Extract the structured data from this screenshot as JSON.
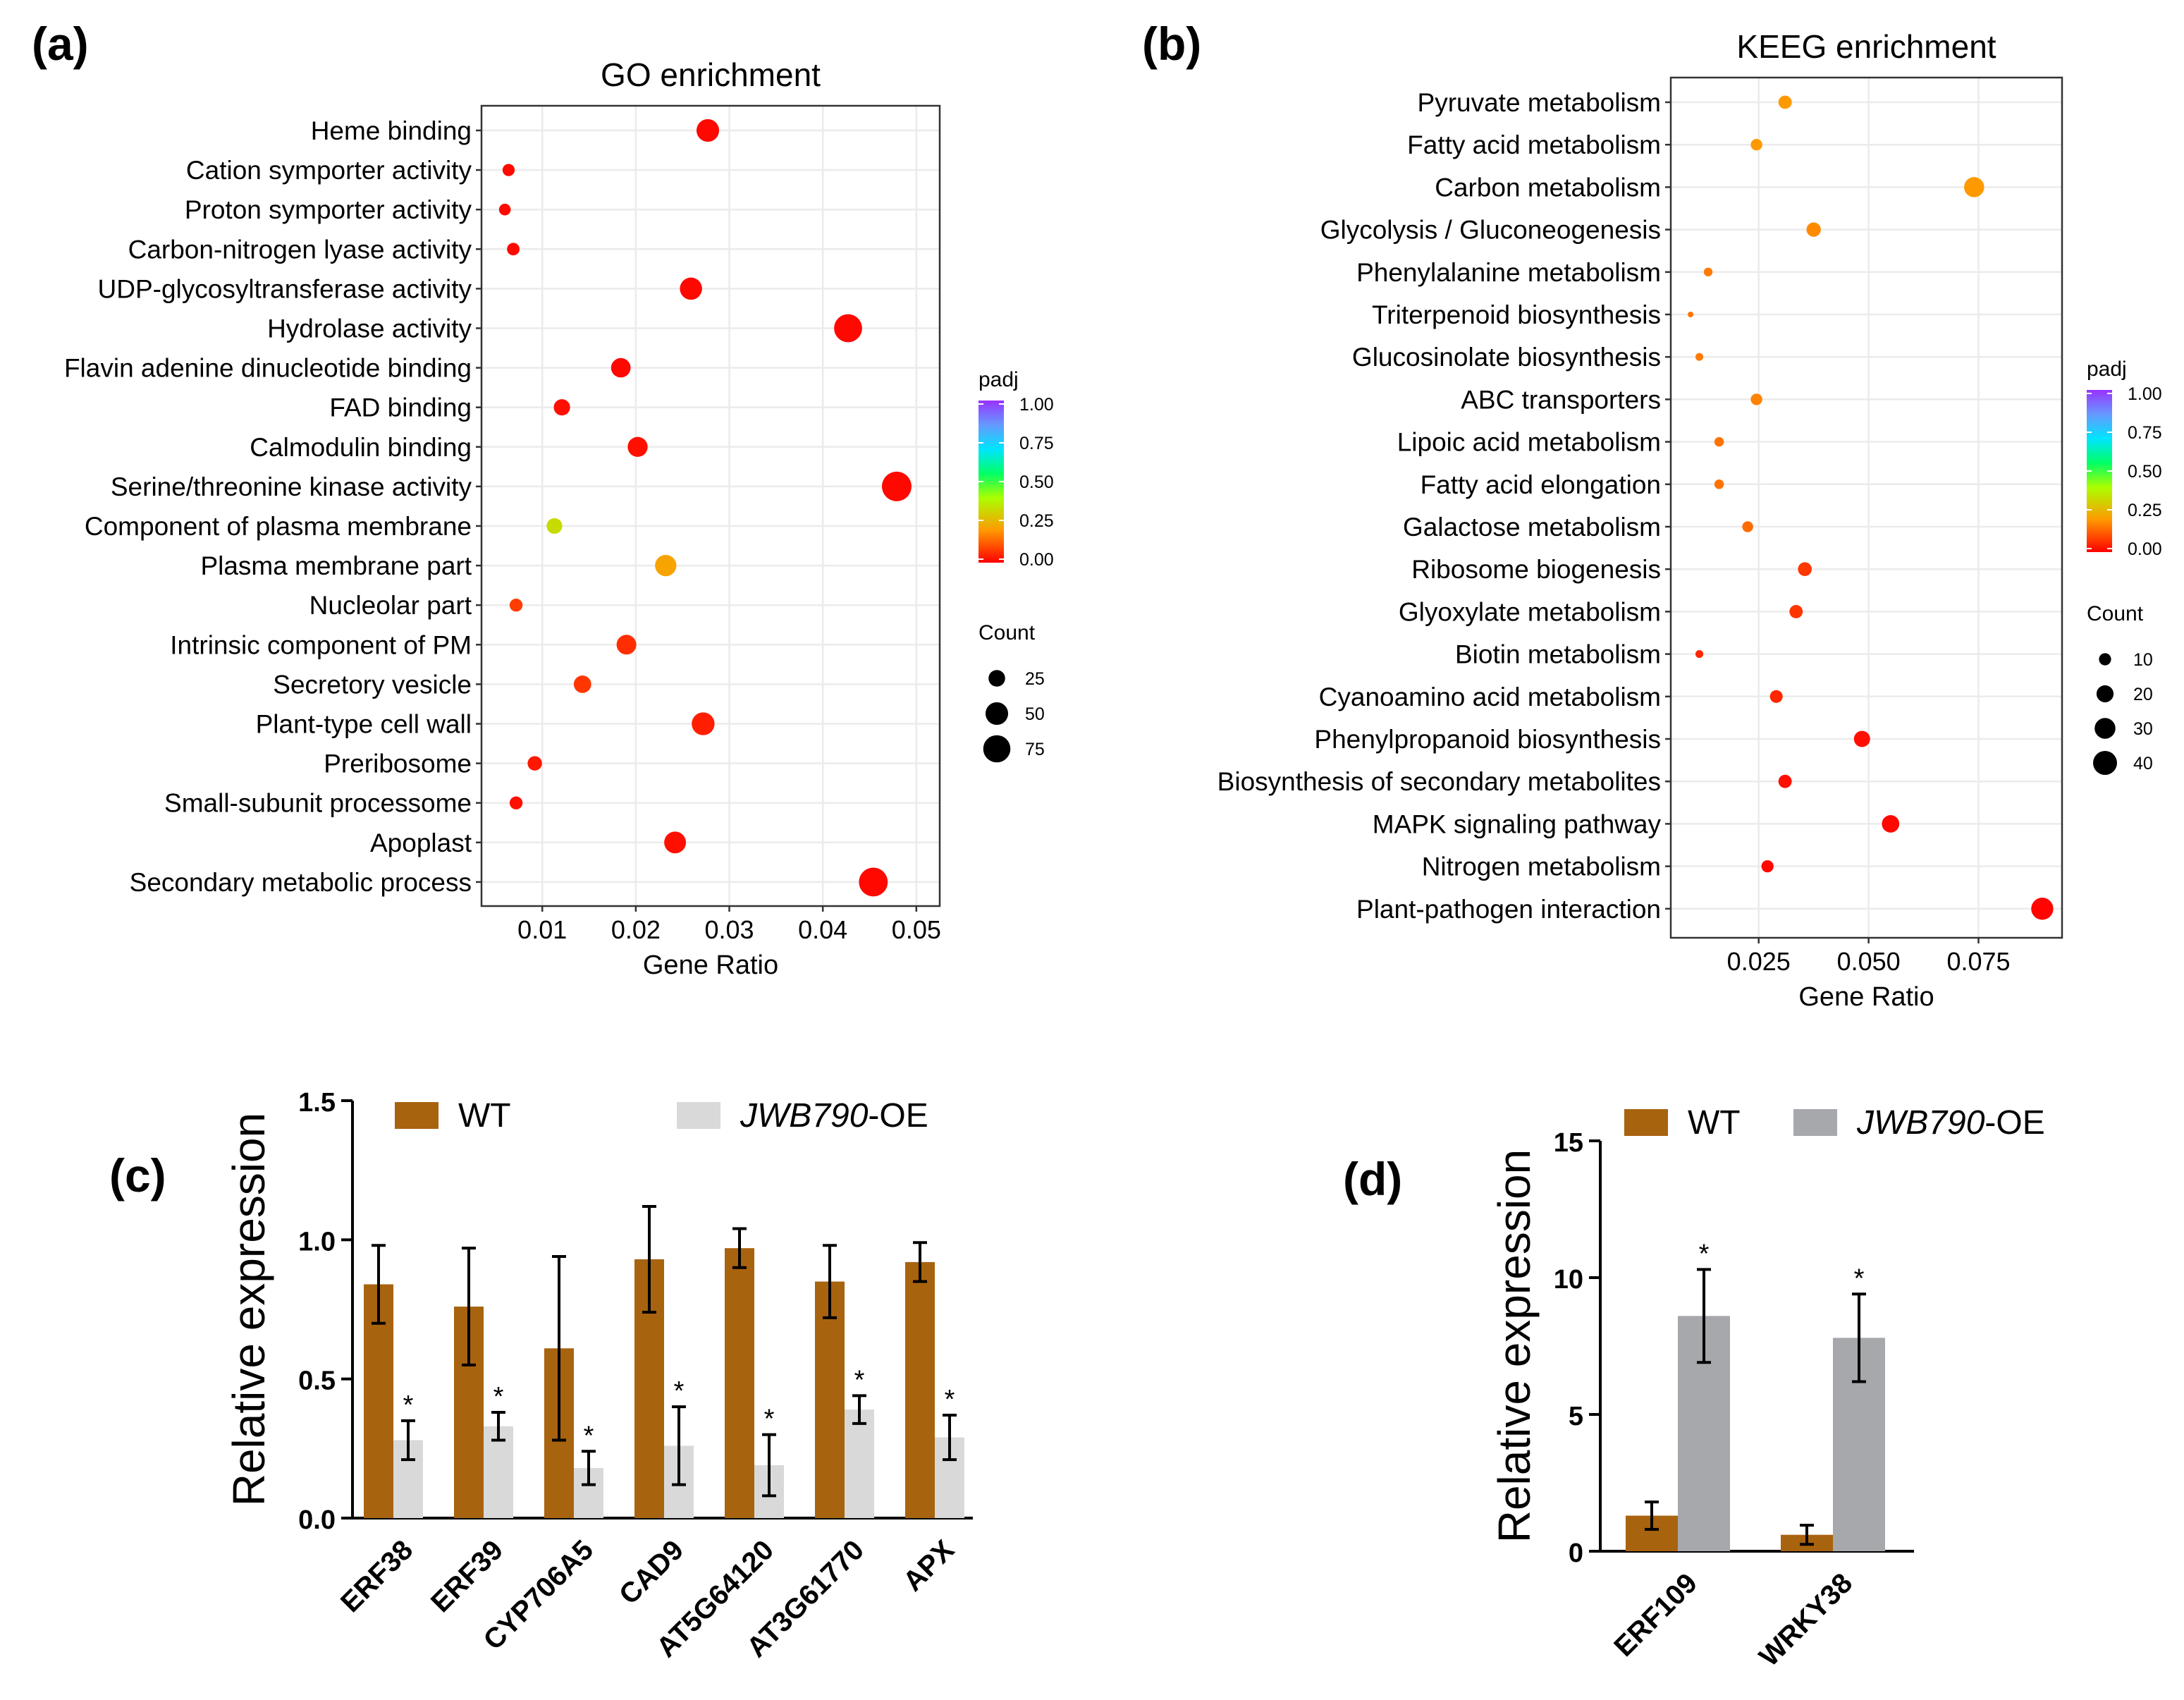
{
  "chart_data": [
    {
      "panel": "(a)",
      "type": "scatter",
      "title": "GO enrichment",
      "xlabel": "Gene Ratio",
      "ylabel": "",
      "xlim": [
        0.0035,
        0.0525
      ],
      "xticks": [
        0.01,
        0.02,
        0.03,
        0.04,
        0.05
      ],
      "xtick_labels": [
        "0.01",
        "0.02",
        "0.03",
        "0.04",
        "0.05"
      ],
      "grid": true,
      "legend": {
        "color_title": "padj",
        "color_ticks": [
          "1.00",
          "0.75",
          "0.50",
          "0.25",
          "0.00"
        ],
        "size_title": "Count",
        "size_values": [
          25,
          50,
          75
        ],
        "size_labels": [
          "25",
          "50",
          "75"
        ]
      },
      "terms": [
        {
          "name": "Heme binding",
          "ratio": 0.0277,
          "padj": 0.01,
          "count": 50
        },
        {
          "name": "Cation symporter activity",
          "ratio": 0.0064,
          "padj": 0.01,
          "count": 12
        },
        {
          "name": "Proton symporter activity",
          "ratio": 0.006,
          "padj": 0.01,
          "count": 11
        },
        {
          "name": "Carbon-nitrogen lyase activity",
          "ratio": 0.0069,
          "padj": 0.01,
          "count": 13
        },
        {
          "name": "UDP-glycosyltransferase activity",
          "ratio": 0.0259,
          "padj": 0.01,
          "count": 48
        },
        {
          "name": "Hydrolase activity",
          "ratio": 0.0427,
          "padj": 0.01,
          "count": 80
        },
        {
          "name": "Flavin adenine dinucleotide binding",
          "ratio": 0.0184,
          "padj": 0.01,
          "count": 36
        },
        {
          "name": "FAD binding",
          "ratio": 0.0121,
          "padj": 0.02,
          "count": 24
        },
        {
          "name": "Calmodulin binding",
          "ratio": 0.0202,
          "padj": 0.02,
          "count": 38
        },
        {
          "name": "Serine/threonine kinase activity",
          "ratio": 0.0479,
          "padj": 0.01,
          "count": 90
        },
        {
          "name": "Component of plasma membrane",
          "ratio": 0.0113,
          "padj": 0.33,
          "count": 22
        },
        {
          "name": "Plasma membrane part",
          "ratio": 0.0232,
          "padj": 0.22,
          "count": 44
        },
        {
          "name": "Nucleolar part",
          "ratio": 0.0072,
          "padj": 0.08,
          "count": 14
        },
        {
          "name": "Intrinsic component of PM",
          "ratio": 0.019,
          "padj": 0.06,
          "count": 37
        },
        {
          "name": "Secretory vesicle",
          "ratio": 0.0143,
          "padj": 0.07,
          "count": 28
        },
        {
          "name": "Plant-type cell wall",
          "ratio": 0.0272,
          "padj": 0.04,
          "count": 51
        },
        {
          "name": "Preribosome",
          "ratio": 0.0092,
          "padj": 0.03,
          "count": 18
        },
        {
          "name": "Small-subunit processome",
          "ratio": 0.0072,
          "padj": 0.02,
          "count": 14
        },
        {
          "name": "Apoplast",
          "ratio": 0.0242,
          "padj": 0.02,
          "count": 46
        },
        {
          "name": "Secondary metabolic process",
          "ratio": 0.0454,
          "padj": 0.01,
          "count": 85
        }
      ]
    },
    {
      "panel": "(b)",
      "type": "scatter",
      "title": "KEEG enrichment",
      "xlabel": "Gene Ratio",
      "ylabel": "",
      "xlim": [
        0.005,
        0.094
      ],
      "xticks": [
        0.025,
        0.05,
        0.075
      ],
      "xtick_labels": [
        "0.025",
        "0.050",
        "0.075"
      ],
      "grid": true,
      "legend": {
        "color_title": "padj",
        "color_ticks": [
          "1.00",
          "0.75",
          "0.50",
          "0.25",
          "0.00"
        ],
        "size_title": "Count",
        "size_values": [
          10,
          20,
          30,
          40
        ],
        "size_labels": [
          "10",
          "20",
          "30",
          "40"
        ]
      },
      "terms": [
        {
          "name": "Pyruvate metabolism",
          "ratio": 0.031,
          "padj": 0.2,
          "count": 12
        },
        {
          "name": "Fatty acid metabolism",
          "ratio": 0.0245,
          "padj": 0.2,
          "count": 9
        },
        {
          "name": "Carbon metabolism",
          "ratio": 0.074,
          "padj": 0.2,
          "count": 28
        },
        {
          "name": "Glycolysis / Gluconeogenesis",
          "ratio": 0.0375,
          "padj": 0.18,
          "count": 14
        },
        {
          "name": "Phenylalanine metabolism",
          "ratio": 0.0135,
          "padj": 0.16,
          "count": 5
        },
        {
          "name": "Triterpenoid biosynthesis",
          "ratio": 0.0095,
          "padj": 0.15,
          "count": 2
        },
        {
          "name": "Glucosinolate biosynthesis",
          "ratio": 0.0115,
          "padj": 0.16,
          "count": 4
        },
        {
          "name": "ABC transporters",
          "ratio": 0.0245,
          "padj": 0.17,
          "count": 9
        },
        {
          "name": "Lipoic acid metabolism",
          "ratio": 0.016,
          "padj": 0.15,
          "count": 6
        },
        {
          "name": "Fatty acid elongation",
          "ratio": 0.016,
          "padj": 0.15,
          "count": 6
        },
        {
          "name": "Galactose metabolism",
          "ratio": 0.0225,
          "padj": 0.14,
          "count": 8
        },
        {
          "name": "Ribosome biogenesis",
          "ratio": 0.0355,
          "padj": 0.07,
          "count": 13
        },
        {
          "name": "Glyoxylate metabolism",
          "ratio": 0.0335,
          "padj": 0.07,
          "count": 12
        },
        {
          "name": "Biotin metabolism",
          "ratio": 0.0115,
          "padj": 0.05,
          "count": 4
        },
        {
          "name": "Cyanoamino acid metabolism",
          "ratio": 0.029,
          "padj": 0.05,
          "count": 11
        },
        {
          "name": "Phenylpropanoid biosynthesis",
          "ratio": 0.0485,
          "padj": 0.02,
          "count": 18
        },
        {
          "name": "Biosynthesis of secondary metabolites",
          "ratio": 0.031,
          "padj": 0.02,
          "count": 12
        },
        {
          "name": "MAPK signaling pathway",
          "ratio": 0.055,
          "padj": 0.01,
          "count": 21
        },
        {
          "name": "Nitrogen metabolism",
          "ratio": 0.027,
          "padj": 0.01,
          "count": 10
        },
        {
          "name": "Plant-pathogen interaction",
          "ratio": 0.0895,
          "padj": 0.005,
          "count": 34
        }
      ]
    },
    {
      "panel": "(c)",
      "type": "bar",
      "title": "",
      "xlabel": "",
      "ylabel": "Relative expression",
      "ylim": [
        0,
        1.5
      ],
      "yticks": [
        "0.0",
        "0.5",
        "1.0",
        "1.5"
      ],
      "categories": [
        "ERF38",
        "ERF39",
        "CYP706A5",
        "CAD9",
        "AT5G64120",
        "AT3G61770",
        "APX"
      ],
      "series": [
        {
          "name": "WT",
          "color": "#a8630f",
          "values": [
            0.84,
            0.76,
            0.61,
            0.93,
            0.97,
            0.85,
            0.92
          ],
          "errors": [
            0.14,
            0.21,
            0.33,
            0.19,
            0.07,
            0.13,
            0.07
          ]
        },
        {
          "name": "JWB790-OE",
          "name_italic": "JWB790",
          "name_suffix": "-OE",
          "color": "#d9d9d9",
          "values": [
            0.28,
            0.33,
            0.18,
            0.26,
            0.19,
            0.39,
            0.29
          ],
          "errors": [
            0.07,
            0.05,
            0.06,
            0.14,
            0.11,
            0.05,
            0.08
          ]
        }
      ],
      "annotations": [
        "*",
        "*",
        "*",
        "*",
        "*",
        "*",
        "*"
      ]
    },
    {
      "panel": "(d)",
      "type": "bar",
      "title": "",
      "xlabel": "",
      "ylabel": "Relative expression",
      "ylim": [
        0,
        15
      ],
      "yticks": [
        "0",
        "5",
        "10",
        "15"
      ],
      "categories": [
        "ERF109",
        "WRKY38"
      ],
      "series": [
        {
          "name": "WT",
          "color": "#a8630f",
          "values": [
            1.3,
            0.6
          ],
          "errors": [
            0.5,
            0.35
          ]
        },
        {
          "name": "JWB790-OE",
          "name_italic": "JWB790",
          "name_suffix": "-OE",
          "color": "#a7a8ac",
          "values": [
            8.6,
            7.8
          ],
          "errors": [
            1.7,
            1.6
          ]
        }
      ],
      "annotations": [
        "*",
        "*"
      ]
    }
  ],
  "panels": {
    "a": {
      "tag": "(a)"
    },
    "b": {
      "tag": "(b)"
    },
    "c": {
      "tag": "(c)"
    },
    "d": {
      "tag": "(d)"
    }
  }
}
